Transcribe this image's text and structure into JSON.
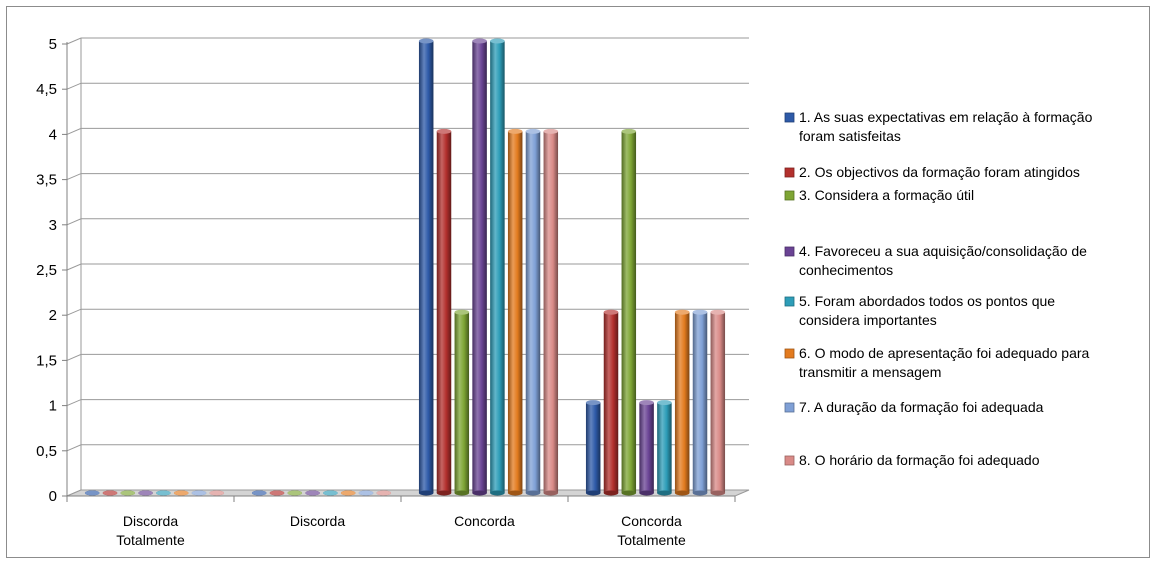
{
  "chart_data": {
    "type": "bar",
    "title": "",
    "xlabel": "",
    "ylabel": "",
    "ylim": [
      0,
      5
    ],
    "y_ticks": [
      "0",
      "0,5",
      "1",
      "1,5",
      "2",
      "2,5",
      "3",
      "3,5",
      "4",
      "4,5",
      "5"
    ],
    "categories": [
      [
        "Discorda",
        "Totalmente"
      ],
      [
        "Discorda"
      ],
      [
        "Concorda"
      ],
      [
        "Concorda",
        "Totalmente"
      ]
    ],
    "series": [
      {
        "name": [
          "1. As suas expectativas em relação à formação",
          "foram satisfeitas"
        ],
        "color": "#2e5aa8",
        "values": [
          0,
          0,
          5,
          1
        ]
      },
      {
        "name": [
          "2. Os objectivos da formação foram atingidos"
        ],
        "color": "#b3302d",
        "values": [
          0,
          0,
          4,
          2
        ]
      },
      {
        "name": [
          "3. Considera a formação útil"
        ],
        "color": "#7ea534",
        "values": [
          0,
          0,
          2,
          4
        ]
      },
      {
        "name": [
          "4. Favoreceu a sua aquisição/consolidação de",
          "conhecimentos"
        ],
        "color": "#6a4394",
        "values": [
          0,
          0,
          5,
          1
        ]
      },
      {
        "name": [
          "5. Foram abordados todos os pontos que",
          "considera importantes"
        ],
        "color": "#2d9db8",
        "values": [
          0,
          0,
          5,
          1
        ]
      },
      {
        "name": [
          "6. O modo de apresentação foi adequado para",
          "transmitir a mensagem"
        ],
        "color": "#e37b1f",
        "values": [
          0,
          0,
          4,
          2
        ]
      },
      {
        "name": [
          "7. A duração da formação foi adequada"
        ],
        "color": "#7fa0d6",
        "values": [
          0,
          0,
          4,
          2
        ]
      },
      {
        "name": [
          "8. O horário da formação foi adequado"
        ],
        "color": "#d98a87",
        "values": [
          0,
          0,
          4,
          2
        ]
      }
    ],
    "grid": true,
    "legend_position": "right",
    "style": "3d-cylinder"
  }
}
